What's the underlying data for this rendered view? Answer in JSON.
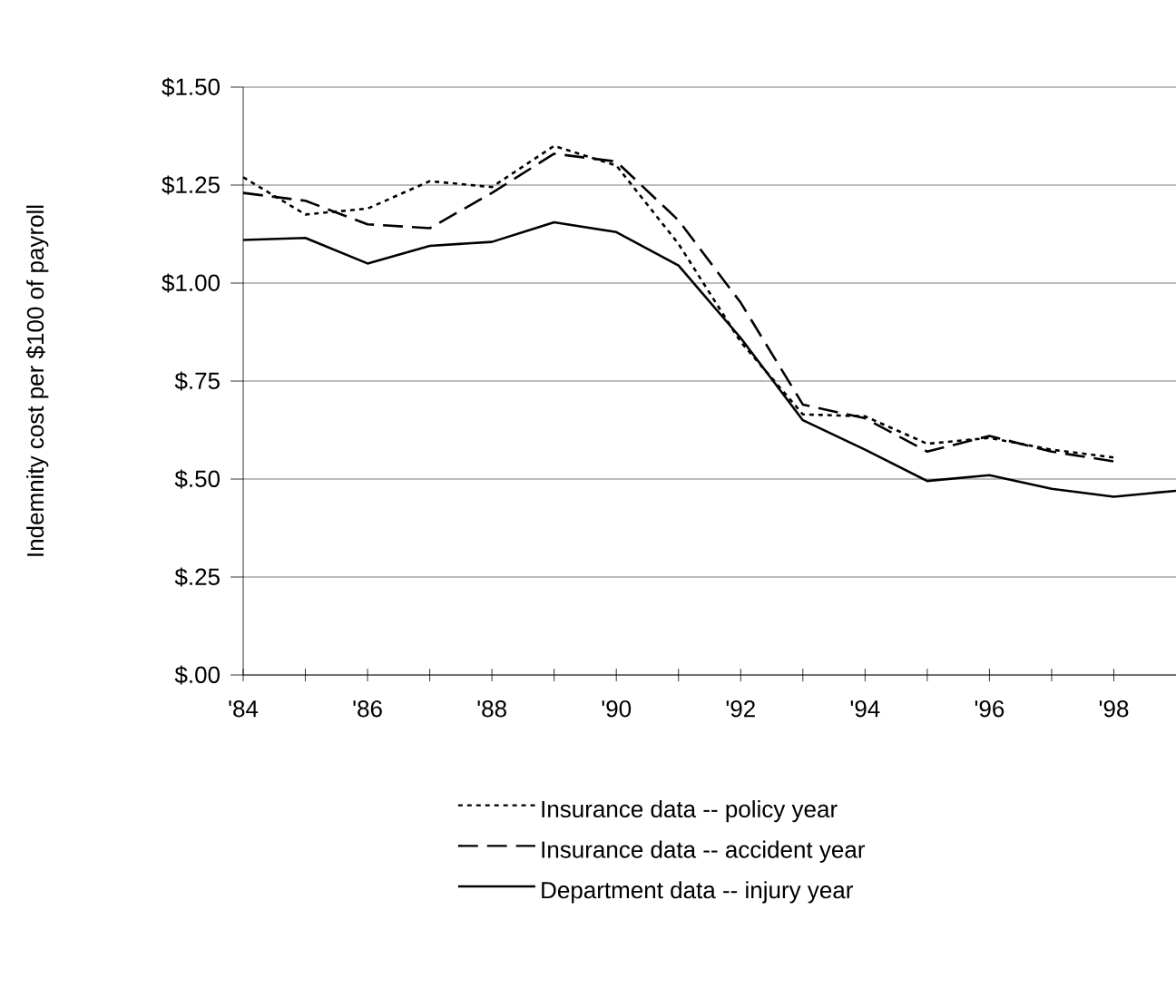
{
  "chart_data": {
    "type": "line",
    "ylabel": "Indemnity cost per $100 of payroll",
    "x": [
      1984,
      1985,
      1986,
      1987,
      1988,
      1989,
      1990,
      1991,
      1992,
      1993,
      1994,
      1995,
      1996,
      1997,
      1998
    ],
    "series": [
      {
        "name": "Insurance data -- policy year",
        "color": "#000000",
        "line_style": "dotted",
        "values": [
          1.27,
          1.175,
          1.19,
          1.26,
          1.245,
          1.35,
          1.3,
          1.1,
          0.85,
          0.665,
          0.66,
          0.59,
          0.605,
          0.575,
          0.555
        ]
      },
      {
        "name": "Insurance data -- accident year",
        "color": "#000000",
        "line_style": "dashed",
        "values": [
          1.23,
          1.21,
          1.15,
          1.14,
          1.23,
          1.33,
          1.31,
          1.16,
          0.95,
          0.69,
          0.655,
          0.57,
          0.61,
          0.57,
          0.545
        ]
      },
      {
        "name": "Department data -- injury year",
        "color": "#000000",
        "line_style": "solid",
        "x": [
          1984,
          1985,
          1986,
          1987,
          1988,
          1989,
          1990,
          1991,
          1992,
          1993,
          1994,
          1995,
          1996,
          1997,
          1998,
          1999
        ],
        "values": [
          1.11,
          1.115,
          1.05,
          1.095,
          1.105,
          1.155,
          1.13,
          1.045,
          0.86,
          0.65,
          0.575,
          0.495,
          0.51,
          0.475,
          0.455,
          0.47
        ]
      }
    ],
    "xlim": [
      1984,
      1999
    ],
    "xticks": [
      {
        "value": 1984,
        "label": "'84"
      },
      {
        "value": 1985,
        "label": null
      },
      {
        "value": 1986,
        "label": "'86"
      },
      {
        "value": 1987,
        "label": null
      },
      {
        "value": 1988,
        "label": "'88"
      },
      {
        "value": 1989,
        "label": null
      },
      {
        "value": 1990,
        "label": "'90"
      },
      {
        "value": 1991,
        "label": null
      },
      {
        "value": 1992,
        "label": "'92"
      },
      {
        "value": 1993,
        "label": null
      },
      {
        "value": 1994,
        "label": "'94"
      },
      {
        "value": 1995,
        "label": null
      },
      {
        "value": 1996,
        "label": "'96"
      },
      {
        "value": 1997,
        "label": null
      },
      {
        "value": 1998,
        "label": "'98"
      }
    ],
    "ylim": [
      0,
      1.5
    ],
    "yticks": [
      {
        "value": 0,
        "label": "$.00"
      },
      {
        "value": 0.25,
        "label": "$.25"
      },
      {
        "value": 0.5,
        "label": "$.50"
      },
      {
        "value": 0.75,
        "label": "$.75"
      },
      {
        "value": 1.0,
        "label": "$1.00"
      },
      {
        "value": 1.25,
        "label": "$1.25"
      },
      {
        "value": 1.5,
        "label": "$1.50"
      }
    ],
    "grid": "y",
    "legend": "bottom",
    "marker": "none"
  }
}
